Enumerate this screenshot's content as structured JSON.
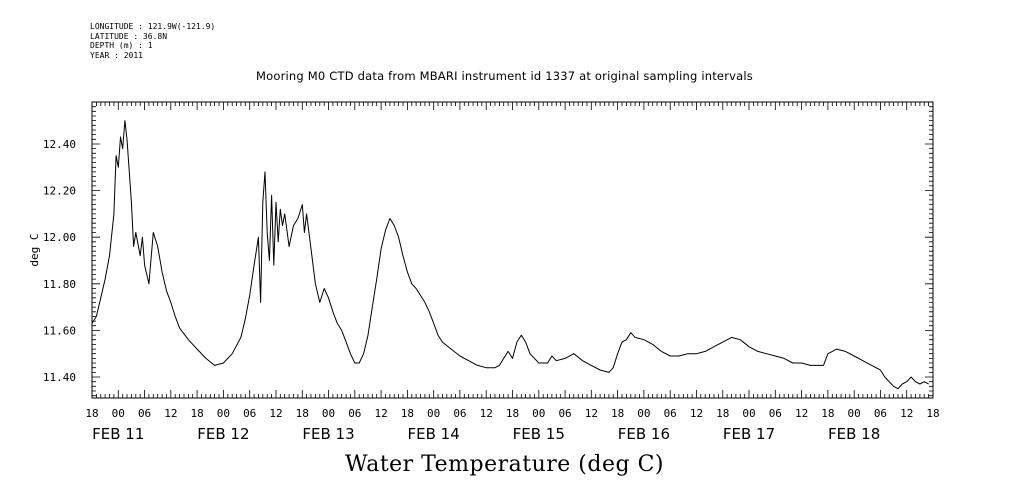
{
  "header": {
    "longitude": "LONGITUDE : 121.9W(-121.9)",
    "latitude": "LATITUDE : 36.8N",
    "depth": "DEPTH (m) : 1",
    "year": "YEAR : 2011"
  },
  "footer_title": "Water Temperature (deg C)",
  "chart_data": {
    "type": "line",
    "title": "Mooring M0 CTD data from MBARI instrument id 1337 at original sampling intervals",
    "xlabel": "",
    "ylabel": "deg C",
    "xlim_hours_since": "2011-02-10 18:00",
    "xlim": [
      "2011-02-10 18:00",
      "2011-02-18 18:00"
    ],
    "ylim": [
      11.31,
      12.58
    ],
    "y_ticks": [
      11.4,
      11.6,
      11.8,
      12.0,
      12.2,
      12.4
    ],
    "y_tick_labels": [
      "11.40",
      "11.60",
      "11.80",
      "12.00",
      "12.20",
      "12.40"
    ],
    "x_hour_labels": [
      "18",
      "00",
      "06",
      "12",
      "18",
      "00",
      "06",
      "12",
      "18",
      "00",
      "06",
      "12",
      "18",
      "00",
      "06",
      "12",
      "18",
      "00",
      "06",
      "12",
      "18",
      "00",
      "06",
      "12",
      "18",
      "00",
      "06",
      "12",
      "18",
      "00",
      "06",
      "12",
      "18"
    ],
    "x_day_labels": [
      "FEB 11",
      "FEB 12",
      "FEB 13",
      "FEB 14",
      "FEB 15",
      "FEB 16",
      "FEB 17",
      "FEB 18"
    ],
    "grid": false,
    "series": [
      {
        "name": "",
        "color": "#000000",
        "points": [
          [
            "2011-02-10 18:00",
            11.63
          ],
          [
            "2011-02-10 19:00",
            11.66
          ],
          [
            "2011-02-10 20:00",
            11.74
          ],
          [
            "2011-02-10 21:00",
            11.82
          ],
          [
            "2011-02-10 22:00",
            11.92
          ],
          [
            "2011-02-10 23:00",
            12.1
          ],
          [
            "2011-02-10 23:30",
            12.35
          ],
          [
            "2011-02-11 00:00",
            12.3
          ],
          [
            "2011-02-11 00:30",
            12.43
          ],
          [
            "2011-02-11 01:00",
            12.38
          ],
          [
            "2011-02-11 01:30",
            12.5
          ],
          [
            "2011-02-11 02:00",
            12.42
          ],
          [
            "2011-02-11 03:00",
            12.15
          ],
          [
            "2011-02-11 03:30",
            11.96
          ],
          [
            "2011-02-11 04:00",
            12.02
          ],
          [
            "2011-02-11 05:00",
            11.92
          ],
          [
            "2011-02-11 05:30",
            12.0
          ],
          [
            "2011-02-11 06:00",
            11.88
          ],
          [
            "2011-02-11 07:00",
            11.8
          ],
          [
            "2011-02-11 08:00",
            12.02
          ],
          [
            "2011-02-11 09:00",
            11.96
          ],
          [
            "2011-02-11 10:00",
            11.85
          ],
          [
            "2011-02-11 11:00",
            11.77
          ],
          [
            "2011-02-11 12:00",
            11.72
          ],
          [
            "2011-02-11 13:00",
            11.66
          ],
          [
            "2011-02-11 14:00",
            11.61
          ],
          [
            "2011-02-11 16:00",
            11.56
          ],
          [
            "2011-02-11 18:00",
            11.52
          ],
          [
            "2011-02-11 20:00",
            11.48
          ],
          [
            "2011-02-11 22:00",
            11.45
          ],
          [
            "2011-02-12 00:00",
            11.46
          ],
          [
            "2011-02-12 02:00",
            11.5
          ],
          [
            "2011-02-12 04:00",
            11.57
          ],
          [
            "2011-02-12 05:00",
            11.65
          ],
          [
            "2011-02-12 06:00",
            11.75
          ],
          [
            "2011-02-12 07:00",
            11.88
          ],
          [
            "2011-02-12 08:00",
            12.0
          ],
          [
            "2011-02-12 08:30",
            11.72
          ],
          [
            "2011-02-12 09:00",
            12.15
          ],
          [
            "2011-02-12 09:30",
            12.28
          ],
          [
            "2011-02-12 10:00",
            12.02
          ],
          [
            "2011-02-12 10:30",
            11.9
          ],
          [
            "2011-02-12 11:00",
            12.18
          ],
          [
            "2011-02-12 11:30",
            11.88
          ],
          [
            "2011-02-12 12:00",
            12.15
          ],
          [
            "2011-02-12 12:30",
            11.98
          ],
          [
            "2011-02-12 13:00",
            12.12
          ],
          [
            "2011-02-12 13:30",
            12.05
          ],
          [
            "2011-02-12 14:00",
            12.1
          ],
          [
            "2011-02-12 15:00",
            11.96
          ],
          [
            "2011-02-12 16:00",
            12.05
          ],
          [
            "2011-02-12 17:00",
            12.08
          ],
          [
            "2011-02-12 18:00",
            12.14
          ],
          [
            "2011-02-12 18:30",
            12.02
          ],
          [
            "2011-02-12 19:00",
            12.1
          ],
          [
            "2011-02-12 20:00",
            11.95
          ],
          [
            "2011-02-12 21:00",
            11.8
          ],
          [
            "2011-02-12 22:00",
            11.72
          ],
          [
            "2011-02-12 23:00",
            11.78
          ],
          [
            "2011-02-13 00:00",
            11.74
          ],
          [
            "2011-02-13 01:00",
            11.68
          ],
          [
            "2011-02-13 02:00",
            11.63
          ],
          [
            "2011-02-13 03:00",
            11.6
          ],
          [
            "2011-02-13 04:00",
            11.55
          ],
          [
            "2011-02-13 05:00",
            11.5
          ],
          [
            "2011-02-13 06:00",
            11.46
          ],
          [
            "2011-02-13 07:00",
            11.46
          ],
          [
            "2011-02-13 08:00",
            11.5
          ],
          [
            "2011-02-13 09:00",
            11.58
          ],
          [
            "2011-02-13 10:00",
            11.7
          ],
          [
            "2011-02-13 11:00",
            11.82
          ],
          [
            "2011-02-13 12:00",
            11.95
          ],
          [
            "2011-02-13 13:00",
            12.03
          ],
          [
            "2011-02-13 14:00",
            12.08
          ],
          [
            "2011-02-13 15:00",
            12.05
          ],
          [
            "2011-02-13 16:00",
            12.0
          ],
          [
            "2011-02-13 17:00",
            11.92
          ],
          [
            "2011-02-13 18:00",
            11.85
          ],
          [
            "2011-02-13 19:00",
            11.8
          ],
          [
            "2011-02-13 20:00",
            11.78
          ],
          [
            "2011-02-13 21:00",
            11.75
          ],
          [
            "2011-02-13 22:00",
            11.72
          ],
          [
            "2011-02-13 23:00",
            11.68
          ],
          [
            "2011-02-14 00:00",
            11.63
          ],
          [
            "2011-02-14 01:00",
            11.58
          ],
          [
            "2011-02-14 02:00",
            11.55
          ],
          [
            "2011-02-14 04:00",
            11.52
          ],
          [
            "2011-02-14 06:00",
            11.49
          ],
          [
            "2011-02-14 08:00",
            11.47
          ],
          [
            "2011-02-14 10:00",
            11.45
          ],
          [
            "2011-02-14 12:00",
            11.44
          ],
          [
            "2011-02-14 14:00",
            11.44
          ],
          [
            "2011-02-14 15:00",
            11.45
          ],
          [
            "2011-02-14 16:00",
            11.48
          ],
          [
            "2011-02-14 17:00",
            11.51
          ],
          [
            "2011-02-14 18:00",
            11.48
          ],
          [
            "2011-02-14 19:00",
            11.55
          ],
          [
            "2011-02-14 20:00",
            11.58
          ],
          [
            "2011-02-14 21:00",
            11.55
          ],
          [
            "2011-02-14 22:00",
            11.5
          ],
          [
            "2011-02-15 00:00",
            11.46
          ],
          [
            "2011-02-15 02:00",
            11.46
          ],
          [
            "2011-02-15 03:00",
            11.49
          ],
          [
            "2011-02-15 04:00",
            11.47
          ],
          [
            "2011-02-15 06:00",
            11.48
          ],
          [
            "2011-02-15 08:00",
            11.5
          ],
          [
            "2011-02-15 10:00",
            11.47
          ],
          [
            "2011-02-15 12:00",
            11.45
          ],
          [
            "2011-02-15 14:00",
            11.43
          ],
          [
            "2011-02-15 16:00",
            11.42
          ],
          [
            "2011-02-15 17:00",
            11.44
          ],
          [
            "2011-02-15 18:00",
            11.5
          ],
          [
            "2011-02-15 19:00",
            11.55
          ],
          [
            "2011-02-15 20:00",
            11.56
          ],
          [
            "2011-02-15 21:00",
            11.59
          ],
          [
            "2011-02-15 22:00",
            11.57
          ],
          [
            "2011-02-16 00:00",
            11.56
          ],
          [
            "2011-02-16 01:00",
            11.55
          ],
          [
            "2011-02-16 02:00",
            11.54
          ],
          [
            "2011-02-16 04:00",
            11.51
          ],
          [
            "2011-02-16 06:00",
            11.49
          ],
          [
            "2011-02-16 08:00",
            11.49
          ],
          [
            "2011-02-16 10:00",
            11.5
          ],
          [
            "2011-02-16 12:00",
            11.5
          ],
          [
            "2011-02-16 14:00",
            11.51
          ],
          [
            "2011-02-16 16:00",
            11.53
          ],
          [
            "2011-02-16 18:00",
            11.55
          ],
          [
            "2011-02-16 20:00",
            11.57
          ],
          [
            "2011-02-16 22:00",
            11.56
          ],
          [
            "2011-02-17 00:00",
            11.53
          ],
          [
            "2011-02-17 02:00",
            11.51
          ],
          [
            "2011-02-17 04:00",
            11.5
          ],
          [
            "2011-02-17 06:00",
            11.49
          ],
          [
            "2011-02-17 08:00",
            11.48
          ],
          [
            "2011-02-17 10:00",
            11.46
          ],
          [
            "2011-02-17 12:00",
            11.46
          ],
          [
            "2011-02-17 14:00",
            11.45
          ],
          [
            "2011-02-17 16:00",
            11.45
          ],
          [
            "2011-02-17 17:00",
            11.45
          ],
          [
            "2011-02-17 18:00",
            11.5
          ],
          [
            "2011-02-17 19:00",
            11.51
          ],
          [
            "2011-02-17 20:00",
            11.52
          ],
          [
            "2011-02-17 22:00",
            11.51
          ],
          [
            "2011-02-18 00:00",
            11.49
          ],
          [
            "2011-02-18 02:00",
            11.47
          ],
          [
            "2011-02-18 04:00",
            11.45
          ],
          [
            "2011-02-18 06:00",
            11.43
          ],
          [
            "2011-02-18 07:00",
            11.4
          ],
          [
            "2011-02-18 08:00",
            11.38
          ],
          [
            "2011-02-18 09:00",
            11.36
          ],
          [
            "2011-02-18 10:00",
            11.35
          ],
          [
            "2011-02-18 11:00",
            11.37
          ],
          [
            "2011-02-18 12:00",
            11.38
          ],
          [
            "2011-02-18 13:00",
            11.4
          ],
          [
            "2011-02-18 14:00",
            11.38
          ],
          [
            "2011-02-18 15:00",
            11.37
          ],
          [
            "2011-02-18 16:00",
            11.38
          ],
          [
            "2011-02-18 17:00",
            11.37
          ]
        ]
      }
    ]
  }
}
